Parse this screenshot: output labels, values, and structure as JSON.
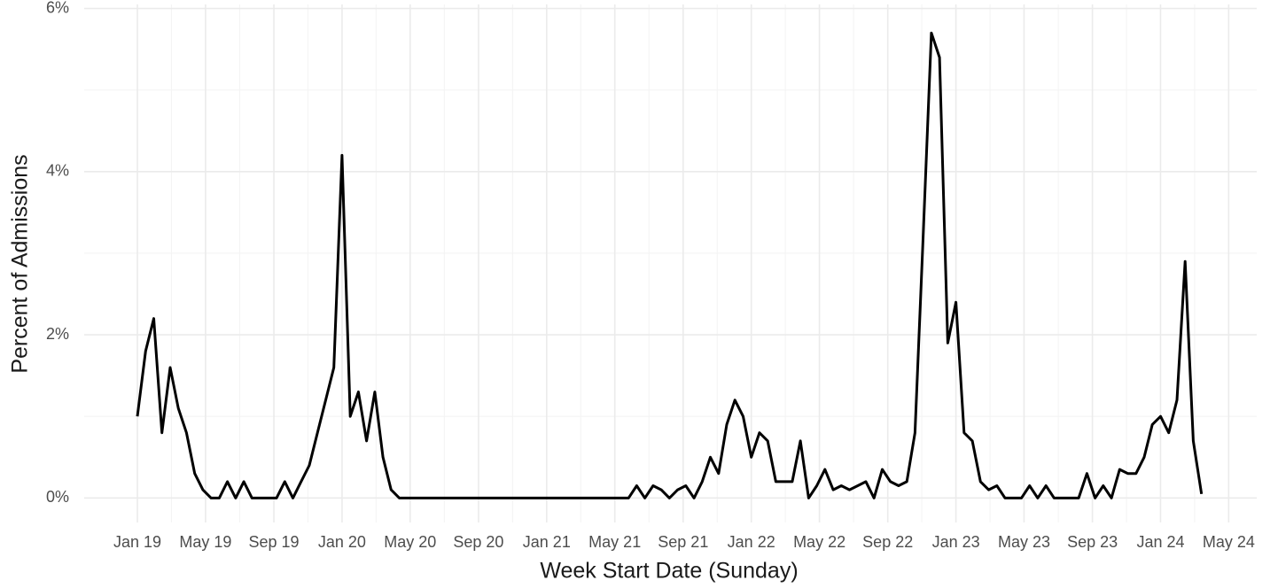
{
  "chart_data": {
    "type": "line",
    "x_label": "Week Start Date (Sunday)",
    "y_label": "Percent of Admissions",
    "x": [
      2019.0,
      2019.04,
      2019.08,
      2019.12,
      2019.16,
      2019.2,
      2019.24,
      2019.28,
      2019.32,
      2019.36,
      2019.4,
      2019.44,
      2019.48,
      2019.52,
      2019.56,
      2019.6,
      2019.64,
      2019.68,
      2019.72,
      2019.76,
      2019.8,
      2019.84,
      2019.88,
      2019.92,
      2019.96,
      2020.0,
      2020.04,
      2020.08,
      2020.12,
      2020.16,
      2020.2,
      2020.24,
      2020.28,
      2020.32,
      2020.36,
      2020.4,
      2020.44,
      2020.48,
      2020.52,
      2020.56,
      2020.6,
      2020.64,
      2020.68,
      2020.72,
      2020.76,
      2020.8,
      2020.84,
      2020.88,
      2020.92,
      2020.96,
      2021.0,
      2021.04,
      2021.08,
      2021.12,
      2021.16,
      2021.2,
      2021.24,
      2021.28,
      2021.32,
      2021.36,
      2021.4,
      2021.44,
      2021.48,
      2021.52,
      2021.56,
      2021.6,
      2021.64,
      2021.68,
      2021.72,
      2021.76,
      2021.8,
      2021.84,
      2021.88,
      2021.92,
      2021.96,
      2022.0,
      2022.04,
      2022.08,
      2022.12,
      2022.16,
      2022.2,
      2022.24,
      2022.28,
      2022.32,
      2022.36,
      2022.4,
      2022.44,
      2022.48,
      2022.52,
      2022.56,
      2022.6,
      2022.64,
      2022.68,
      2022.72,
      2022.76,
      2022.8,
      2022.84,
      2022.88,
      2022.92,
      2022.96,
      2023.0,
      2023.04,
      2023.08,
      2023.12,
      2023.16,
      2023.2,
      2023.24,
      2023.28,
      2023.32,
      2023.36,
      2023.4,
      2023.44,
      2023.48,
      2023.52,
      2023.56,
      2023.6,
      2023.64,
      2023.68,
      2023.72,
      2023.76,
      2023.8,
      2023.84,
      2023.88,
      2023.92,
      2023.96,
      2024.0,
      2024.04,
      2024.08,
      2024.12,
      2024.16,
      2024.2
    ],
    "series": [
      {
        "color": "#000000",
        "values": [
          1.0,
          1.8,
          2.2,
          0.8,
          1.6,
          1.1,
          0.8,
          0.3,
          0.1,
          0,
          0,
          0.2,
          0,
          0.2,
          0,
          0,
          0,
          0,
          0.2,
          0,
          0.2,
          0.4,
          0.8,
          1.2,
          1.6,
          4.2,
          1.0,
          1.3,
          0.7,
          1.3,
          0.5,
          0.1,
          0,
          0,
          0,
          0,
          0,
          0,
          0,
          0,
          0,
          0,
          0,
          0,
          0,
          0,
          0,
          0,
          0,
          0,
          0,
          0,
          0,
          0,
          0,
          0,
          0,
          0,
          0,
          0,
          0,
          0.15,
          0,
          0.15,
          0.1,
          0,
          0.1,
          0.15,
          0,
          0.2,
          0.5,
          0.3,
          0.9,
          1.2,
          1.0,
          0.5,
          0.8,
          0.7,
          0.2,
          0.2,
          0.2,
          0.7,
          0,
          0.15,
          0.35,
          0.1,
          0.15,
          0.1,
          0.15,
          0.2,
          0,
          0.35,
          0.2,
          0.15,
          0.2,
          0.8,
          3.2,
          5.7,
          5.4,
          1.9,
          2.4,
          0.8,
          0.7,
          0.2,
          0.1,
          0.15,
          0,
          0,
          0,
          0.15,
          0,
          0.15,
          0,
          0,
          0,
          0,
          0.3,
          0,
          0.15,
          0,
          0.35,
          0.3,
          0.3,
          0.5,
          0.9,
          1.0,
          0.8,
          1.2,
          2.9,
          0.7,
          0.05
        ]
      }
    ],
    "xlim": [
      2018.74,
      2024.47
    ],
    "xticks": [
      {
        "value": 2019,
        "label": "Jan 19"
      },
      {
        "value": 2019.333,
        "label": "May 19"
      },
      {
        "value": 2019.667,
        "label": "Sep 19"
      },
      {
        "value": 2020,
        "label": "Jan 20"
      },
      {
        "value": 2020.333,
        "label": "May 20"
      },
      {
        "value": 2020.667,
        "label": "Sep 20"
      },
      {
        "value": 2021,
        "label": "Jan 21"
      },
      {
        "value": 2021.333,
        "label": "May 21"
      },
      {
        "value": 2021.667,
        "label": "Sep 21"
      },
      {
        "value": 2022,
        "label": "Jan 22"
      },
      {
        "value": 2022.333,
        "label": "May 22"
      },
      {
        "value": 2022.667,
        "label": "Sep 22"
      },
      {
        "value": 2023,
        "label": "Jan 23"
      },
      {
        "value": 2023.333,
        "label": "May 23"
      },
      {
        "value": 2023.667,
        "label": "Sep 23"
      },
      {
        "value": 2024,
        "label": "Jan 24"
      },
      {
        "value": 2024.333,
        "label": "May 24"
      }
    ],
    "ylim": [
      -0.3,
      6.05
    ],
    "yticks": [
      {
        "value": 0,
        "label": "0%"
      },
      {
        "value": 2,
        "label": "2%"
      },
      {
        "value": 4,
        "label": "4%"
      },
      {
        "value": 6,
        "label": "6%"
      }
    ],
    "grid": true
  }
}
